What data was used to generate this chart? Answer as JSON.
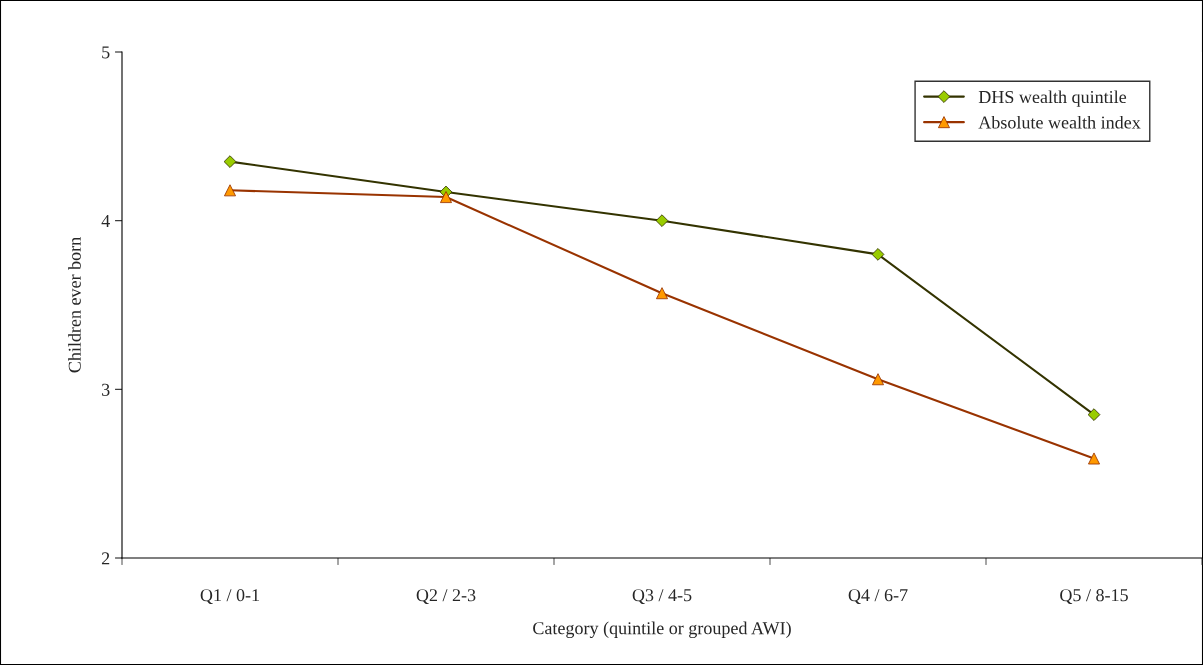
{
  "chart_data": {
    "type": "line",
    "xlabel": "Category (quintile or grouped AWI)",
    "ylabel": "Children ever born",
    "categories": [
      "Q1 / 0-1",
      "Q2 / 2-3",
      "Q3 / 4-5",
      "Q4 / 6-7",
      "Q5 / 8-15"
    ],
    "series": [
      {
        "name": "DHS wealth quintile",
        "color": "#333300",
        "colors": [
          "#99cc00",
          "#99cc00",
          "#99cc00",
          "#99cc00",
          "#99cc00"
        ],
        "marker": "diamond",
        "values": [
          4.35,
          4.17,
          4.0,
          3.8,
          2.85
        ]
      },
      {
        "name": "Absolute wealth index",
        "color": "#993300",
        "colors": [
          "#ff9900",
          "#ff9900",
          "#ff9900",
          "#ff9900",
          "#ff9900"
        ],
        "marker": "triangle",
        "values": [
          4.18,
          4.14,
          3.57,
          3.06,
          2.59
        ]
      }
    ],
    "ylim": [
      2,
      5
    ],
    "yticks": [
      2,
      3,
      4,
      5
    ],
    "grid": false,
    "legend": "top right",
    "line_style": "solid"
  }
}
